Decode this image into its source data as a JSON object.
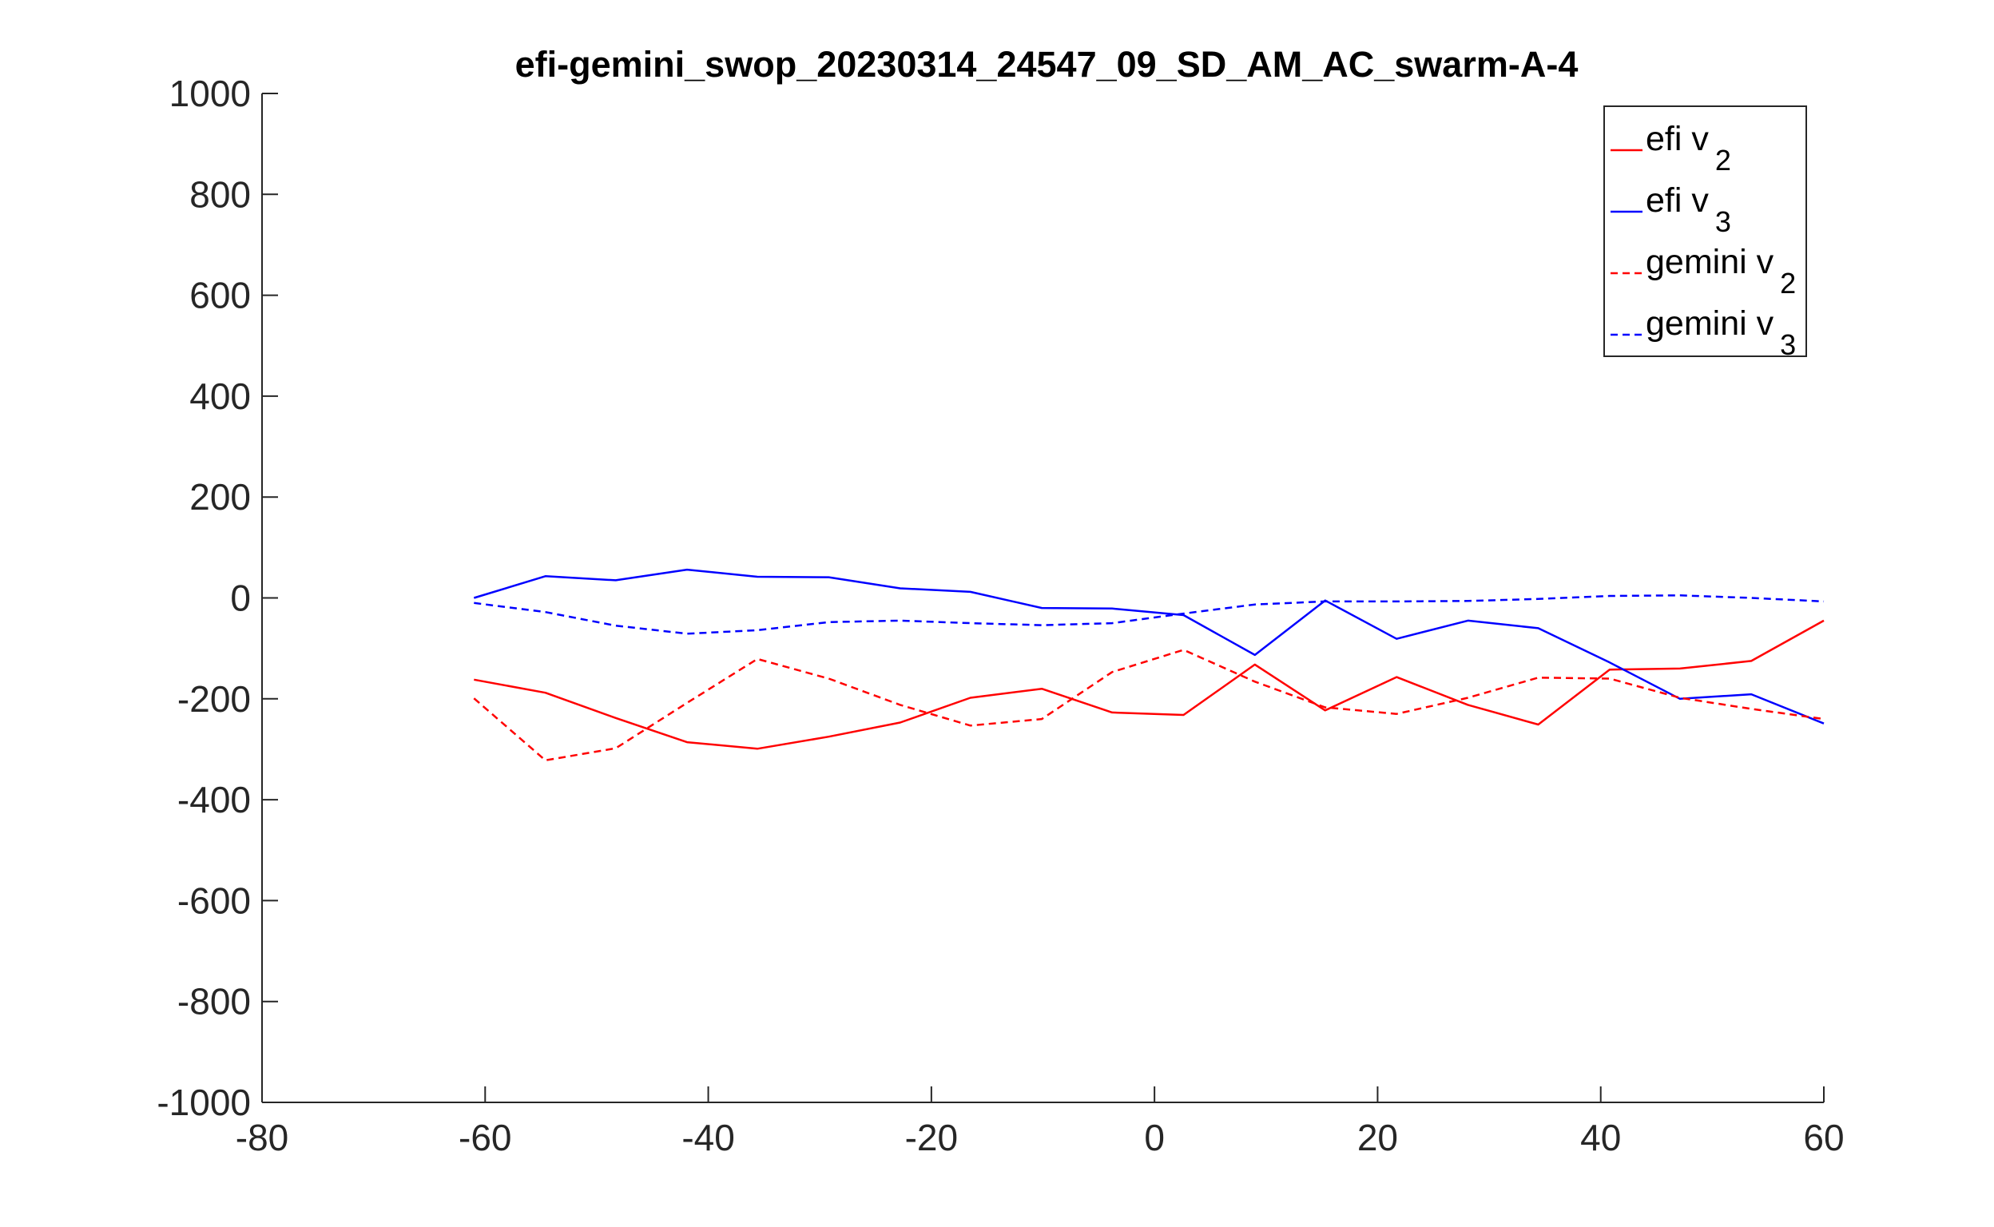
{
  "chart_data": {
    "type": "line",
    "title": "efi-gemini_swop_20230314_24547_09_SD_AM_AC_swarm-A-4",
    "xlabel": "",
    "ylabel": "",
    "xlim": [
      -80,
      60
    ],
    "ylim": [
      -1000,
      1000
    ],
    "xticks": [
      "-80",
      "-60",
      "-40",
      "-20",
      "0",
      "20",
      "40",
      "60"
    ],
    "yticks": [
      "1000",
      "800",
      "600",
      "400",
      "200",
      "0",
      "-200",
      "-400",
      "-600",
      "-800",
      "-1000"
    ],
    "grid": false,
    "legend_position": "top-right",
    "x": [
      -61,
      -54.6,
      -48.3,
      -41.9,
      -35.6,
      -29.2,
      -22.8,
      -16.5,
      -10.1,
      -3.8,
      2.6,
      9,
      15.3,
      21.7,
      28.1,
      34.4,
      40.8,
      47.1,
      53.5,
      60
    ],
    "series": [
      {
        "name": "efi v",
        "subscript": "2",
        "color": "#ff0000",
        "dash": "solid",
        "values": [
          -162,
          -188,
          -238,
          -286,
          -299,
          -275,
          -247,
          -198,
          -180,
          -227,
          -232,
          -132,
          -223,
          -157,
          -212,
          -251,
          -142,
          -140,
          -125,
          -45
        ]
      },
      {
        "name": "efi v",
        "subscript": "3",
        "color": "#0000ff",
        "dash": "solid",
        "values": [
          0,
          43,
          35,
          56,
          42,
          41,
          19,
          12,
          -20,
          -21,
          -34,
          -113,
          -5,
          -81,
          -45,
          -60,
          -128,
          -200,
          -191,
          -249
        ]
      },
      {
        "name": "gemini v",
        "subscript": "2",
        "color": "#ff0000",
        "dash": "dashed",
        "values": [
          -199,
          -322,
          -298,
          -208,
          -121,
          -160,
          -212,
          -253,
          -240,
          -147,
          -103,
          -166,
          -217,
          -230,
          -198,
          -158,
          -160,
          -198,
          -220,
          -240
        ]
      },
      {
        "name": "gemini v",
        "subscript": "3",
        "color": "#0000ff",
        "dash": "dashed",
        "values": [
          -10,
          -28,
          -55,
          -71,
          -64,
          -48,
          -45,
          -50,
          -54,
          -50,
          -31,
          -13,
          -7,
          -7,
          -6,
          -2,
          4,
          5,
          0,
          -7
        ]
      }
    ]
  }
}
